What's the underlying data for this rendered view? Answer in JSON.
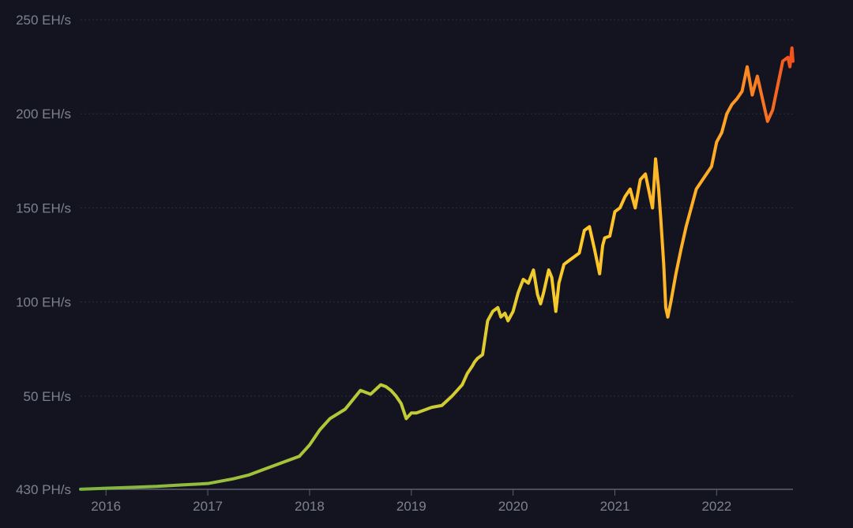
{
  "colors": {
    "background": "#131420",
    "grid": "#2b2e40",
    "axis": "#5d6070",
    "tick_text": "#7d8190",
    "gradient_start": "#7cb342",
    "gradient_mid1": "#c0cc36",
    "gradient_mid2": "#ffca28",
    "gradient_mid3": "#ffa726",
    "gradient_end": "#f4511e"
  },
  "chart_data": {
    "type": "line",
    "title": "",
    "xlabel": "",
    "ylabel": "",
    "grid": true,
    "legend": "none",
    "xlim": [
      2015.75,
      2022.75
    ],
    "ylim": [
      0.43,
      250
    ],
    "x_ticks": [
      {
        "value": 2016,
        "label": "2016"
      },
      {
        "value": 2017,
        "label": "2017"
      },
      {
        "value": 2018,
        "label": "2018"
      },
      {
        "value": 2019,
        "label": "2019"
      },
      {
        "value": 2020,
        "label": "2020"
      },
      {
        "value": 2021,
        "label": "2021"
      },
      {
        "value": 2022,
        "label": "2022"
      }
    ],
    "y_ticks": [
      {
        "value": 0.43,
        "label": "430 PH/s"
      },
      {
        "value": 50,
        "label": "50 EH/s"
      },
      {
        "value": 100,
        "label": "100 EH/s"
      },
      {
        "value": 150,
        "label": "150 EH/s"
      },
      {
        "value": 200,
        "label": "200 EH/s"
      },
      {
        "value": 250,
        "label": "250 EH/s"
      }
    ],
    "series": [
      {
        "unit": "EH/s",
        "x": [
          2015.75,
          2016.0,
          2016.25,
          2016.5,
          2016.75,
          2017.0,
          2017.25,
          2017.4,
          2017.6,
          2017.75,
          2017.9,
          2018.0,
          2018.1,
          2018.2,
          2018.35,
          2018.5,
          2018.6,
          2018.7,
          2018.75,
          2018.8,
          2018.85,
          2018.9,
          2018.95,
          2019.0,
          2019.05,
          2019.1,
          2019.2,
          2019.3,
          2019.4,
          2019.45,
          2019.5,
          2019.55,
          2019.6,
          2019.62,
          2019.65,
          2019.7,
          2019.75,
          2019.8,
          2019.85,
          2019.88,
          2019.92,
          2019.95,
          2020.0,
          2020.05,
          2020.1,
          2020.15,
          2020.2,
          2020.24,
          2020.27,
          2020.3,
          2020.35,
          2020.38,
          2020.42,
          2020.45,
          2020.5,
          2020.55,
          2020.6,
          2020.65,
          2020.7,
          2020.75,
          2020.8,
          2020.85,
          2020.88,
          2020.9,
          2020.95,
          2021.0,
          2021.05,
          2021.1,
          2021.15,
          2021.2,
          2021.25,
          2021.3,
          2021.35,
          2021.37,
          2021.4,
          2021.43,
          2021.45,
          2021.48,
          2021.5,
          2021.52,
          2021.55,
          2021.6,
          2021.65,
          2021.7,
          2021.75,
          2021.8,
          2021.85,
          2021.9,
          2021.95,
          2022.0,
          2022.05,
          2022.1,
          2022.15,
          2022.2,
          2022.25,
          2022.3,
          2022.35,
          2022.4,
          2022.45,
          2022.5,
          2022.55,
          2022.6,
          2022.65,
          2022.7,
          2022.72,
          2022.74,
          2022.75
        ],
        "y": [
          0.5,
          1.0,
          1.5,
          2.0,
          2.8,
          3.5,
          6.0,
          8.0,
          12.0,
          15.0,
          18.0,
          24.0,
          32.0,
          38.0,
          43.0,
          53.0,
          51.0,
          56.0,
          55.0,
          53.0,
          50.0,
          46.0,
          38.0,
          41.0,
          41.0,
          42.0,
          44.0,
          45.0,
          50.0,
          53.0,
          56.0,
          62.0,
          66.0,
          68.0,
          70.0,
          72.0,
          90.0,
          95.0,
          97.0,
          92.0,
          94.0,
          90.0,
          95.0,
          105.0,
          112.0,
          110.0,
          117.0,
          104.0,
          99.0,
          105.0,
          117.0,
          113.0,
          95.0,
          110.0,
          120.0,
          122.0,
          124.0,
          126.0,
          138.0,
          140.0,
          128.0,
          115.0,
          130.0,
          134.0,
          135.0,
          148.0,
          150.0,
          156.0,
          160.0,
          150.0,
          165.0,
          168.0,
          155.0,
          150.0,
          176.0,
          160.0,
          145.0,
          120.0,
          97.0,
          92.0,
          100.0,
          115.0,
          128.0,
          140.0,
          150.0,
          160.0,
          164.0,
          168.0,
          172.0,
          185.0,
          190.0,
          200.0,
          205.0,
          208.0,
          212.0,
          225.0,
          210.0,
          220.0,
          208.0,
          196.0,
          202.0,
          215.0,
          228.0,
          230.0,
          225.0,
          235.0,
          228.0
        ]
      }
    ]
  }
}
